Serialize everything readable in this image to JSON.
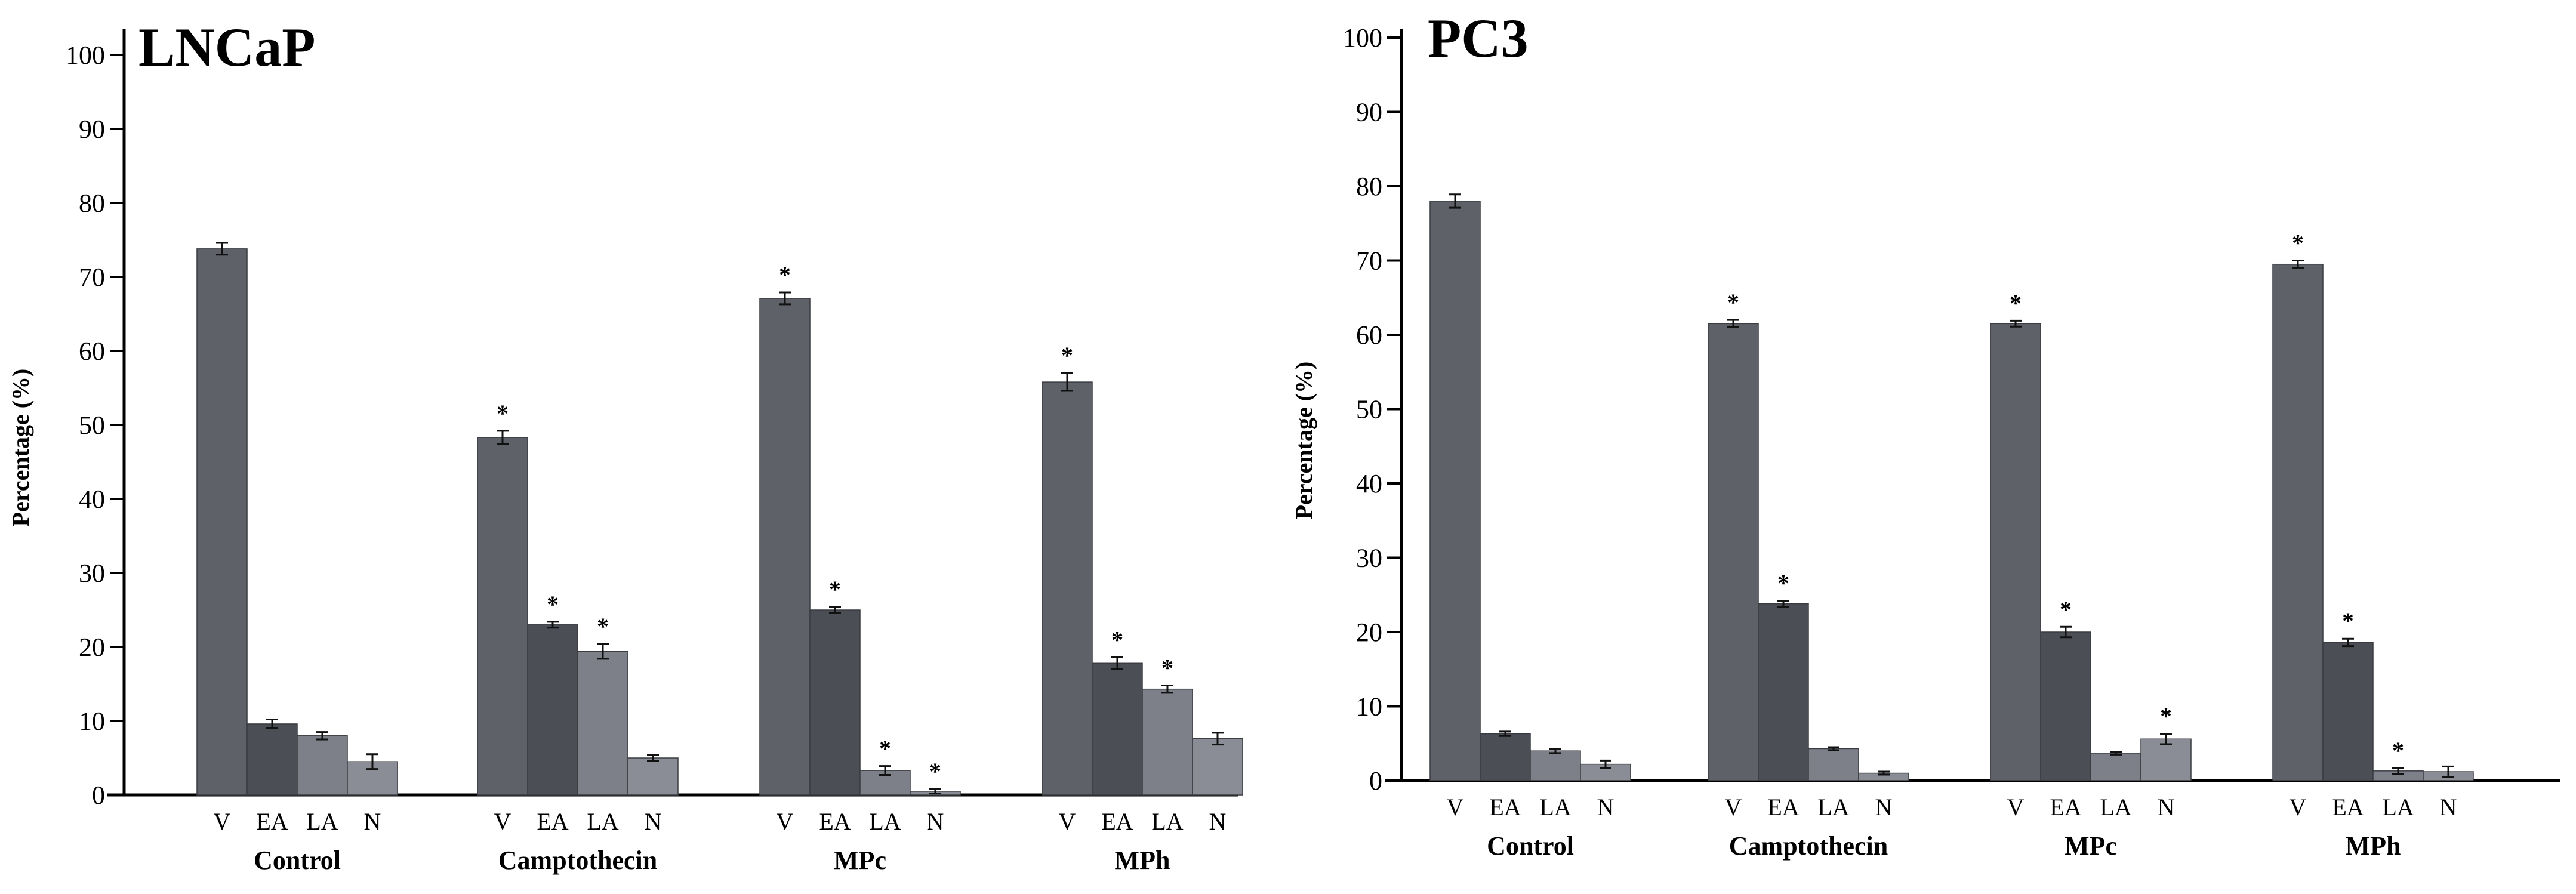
{
  "colors": {
    "V": "#5e6168",
    "EA": "#4b4e55",
    "LA": "#7d8089",
    "N": "#8a8d95",
    "axis": "#000000"
  },
  "chart_data": [
    {
      "type": "bar",
      "title": "LNCaP",
      "ylabel": "Percentage (%)",
      "ylim": [
        0,
        100
      ],
      "yticks": [
        "0",
        "10",
        "20",
        "30",
        "40",
        "50",
        "60",
        "70",
        "80",
        "90",
        "100"
      ],
      "categories": [
        "Control",
        "Camptothecin",
        "MPc",
        "MPh"
      ],
      "subcategories": [
        "V",
        "EA",
        "LA",
        "N"
      ],
      "series": [
        {
          "name": "V",
          "values": [
            73.8,
            48.3,
            67.1,
            55.8
          ],
          "errors": [
            0.8,
            0.9,
            0.8,
            1.2
          ],
          "significant": [
            false,
            true,
            true,
            true
          ]
        },
        {
          "name": "EA",
          "values": [
            9.6,
            23.0,
            25.0,
            17.8
          ],
          "errors": [
            0.6,
            0.4,
            0.4,
            0.8
          ],
          "significant": [
            false,
            true,
            true,
            true
          ]
        },
        {
          "name": "LA",
          "values": [
            8.0,
            19.4,
            3.3,
            14.3
          ],
          "errors": [
            0.5,
            1.0,
            0.6,
            0.5
          ],
          "significant": [
            false,
            true,
            true,
            true
          ]
        },
        {
          "name": "N",
          "values": [
            4.5,
            5.0,
            0.5,
            7.6
          ],
          "errors": [
            1.0,
            0.4,
            0.3,
            0.8
          ],
          "significant": [
            false,
            false,
            true,
            false
          ]
        }
      ],
      "significance_marker": "*"
    },
    {
      "type": "bar",
      "title": "PC3",
      "ylabel": "Percentage (%)",
      "ylim": [
        0,
        100
      ],
      "yticks": [
        "0",
        "10",
        "20",
        "30",
        "40",
        "50",
        "60",
        "70",
        "80",
        "90",
        "100"
      ],
      "categories": [
        "Control",
        "Camptothecin",
        "MPc",
        "MPh"
      ],
      "subcategories": [
        "V",
        "EA",
        "LA",
        "N"
      ],
      "series": [
        {
          "name": "V",
          "values": [
            78.0,
            61.5,
            61.5,
            69.5
          ],
          "errors": [
            0.9,
            0.5,
            0.4,
            0.5
          ],
          "significant": [
            false,
            true,
            true,
            true
          ]
        },
        {
          "name": "EA",
          "values": [
            6.3,
            23.8,
            20.0,
            18.6
          ],
          "errors": [
            0.3,
            0.4,
            0.7,
            0.5
          ],
          "significant": [
            false,
            true,
            true,
            true
          ]
        },
        {
          "name": "LA",
          "values": [
            4.0,
            4.3,
            3.7,
            1.3
          ],
          "errors": [
            0.3,
            0.2,
            0.2,
            0.4
          ],
          "significant": [
            false,
            false,
            false,
            true
          ]
        },
        {
          "name": "N",
          "values": [
            2.2,
            1.0,
            5.6,
            1.2
          ],
          "errors": [
            0.5,
            0.2,
            0.7,
            0.7
          ],
          "significant": [
            false,
            false,
            true,
            false
          ]
        }
      ],
      "significance_marker": "*"
    }
  ]
}
